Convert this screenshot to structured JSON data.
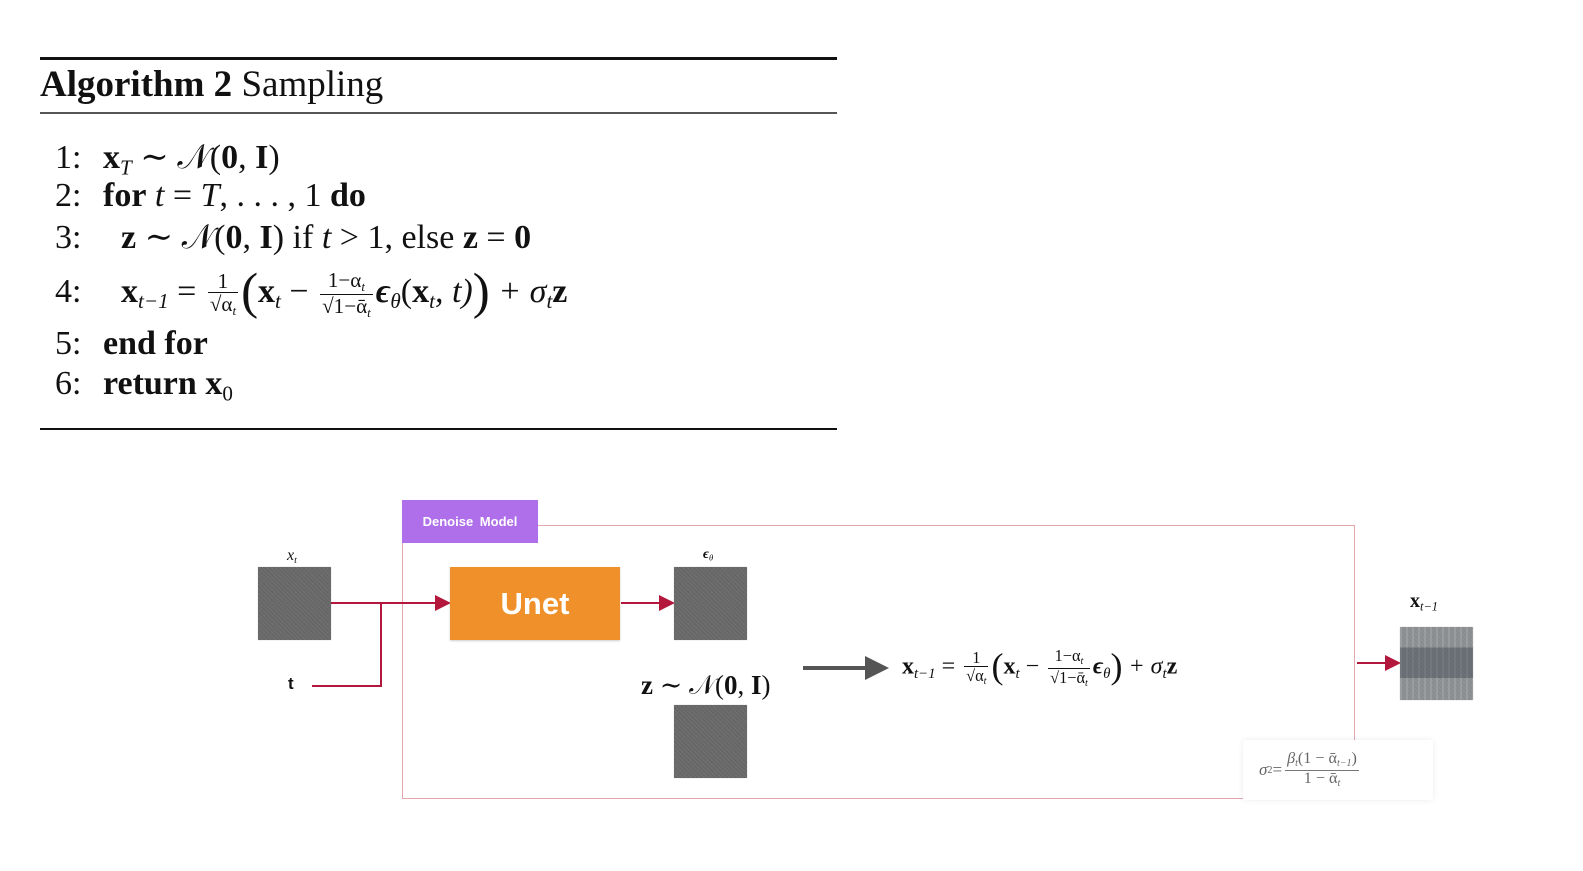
{
  "algorithm": {
    "title_bold": "Algorithm 2",
    "title_rest": "Sampling",
    "lines": {
      "l1": {
        "num": "1:",
        "x": "x",
        "sub": "T",
        "rest": " ∼ 𝒩(",
        "zero": "0",
        "comma": ", ",
        "I": "I",
        "close": ")"
      },
      "l2": {
        "num": "2:",
        "for": "for",
        "t": "t",
        "eq": " = ",
        "T": "T",
        "dots": ", . . . , 1 ",
        "do": "do"
      },
      "l3": {
        "num": "3:",
        "z": "z",
        "sim": " ∼ 𝒩(",
        "zero": "0",
        "comma": ", ",
        "I": "I",
        "close": ") if ",
        "t": "t",
        "gt": " > 1, else ",
        "z2": "z",
        "eq": " = ",
        "zero2": "0"
      },
      "l4": {
        "num": "4:",
        "x": "x",
        "xsub": "t−1",
        "eq": " = ",
        "num1": "1",
        "den1": "√α",
        "den1sub": "t",
        "lp": "(",
        "xt": "x",
        "xtsub": "t",
        "minus": " − ",
        "num2": "1−α",
        "num2sub": "t",
        "den2": "√1−ᾱ",
        "den2sub": "t",
        "eps": "ϵ",
        "epssub": "θ",
        "arg_open": "(",
        "argx": "x",
        "argxsub": "t",
        "argrest": ", t)",
        "rp": ")",
        "plus": " + σ",
        "sigsub": "t",
        "z": "z"
      },
      "l5": {
        "num": "5:",
        "text": "end for"
      },
      "l6": {
        "num": "6:",
        "ret": "return",
        "x": "x",
        "sub": "0"
      }
    }
  },
  "diagram": {
    "tag_label": "Denoise  Model",
    "xt_label_main": "x",
    "xt_label_sub": "t",
    "t_label": "t",
    "unet_label": "Unet",
    "eps_label_main": "ϵ",
    "eps_label_sub": "θ",
    "z_label_pre": "z",
    "z_label_rest": " ∼ 𝒩(",
    "z_label_zero": "0",
    "z_label_comma": ", ",
    "z_label_I": "I",
    "z_label_close": ")",
    "output_label_main": "x",
    "output_label_sub": "t−1",
    "update": {
      "lhs": "x",
      "lhs_sub": "t−1",
      "eq": " = ",
      "n1": "1",
      "d1": "√α",
      "d1sub": "t",
      "lp": "(",
      "xt": "x",
      "xtsub": "t",
      "minus": " − ",
      "n2": "1−α",
      "n2sub": "t",
      "d2": "√1−ᾱ",
      "d2sub": "t",
      "eps": "ϵ",
      "epssub": "θ",
      "rp": ")",
      "plus": " + σ",
      "sigsub": "t",
      "z": "z"
    },
    "sigma": {
      "lhs": "σ",
      "lhs_sup": "2",
      "eq": " = ",
      "num": "β",
      "num_sub": "t",
      "num_rest": "(1 − ᾱ",
      "num_sub2": "t−1",
      "num_close": ")",
      "den": "1 − ᾱ",
      "den_sub": "t"
    },
    "colors": {
      "arrow": "#b3173c",
      "unet": "#f0902a",
      "tag": "#b06fea",
      "frame": "#e3a7ae",
      "gray_arrow": "#555555"
    }
  }
}
